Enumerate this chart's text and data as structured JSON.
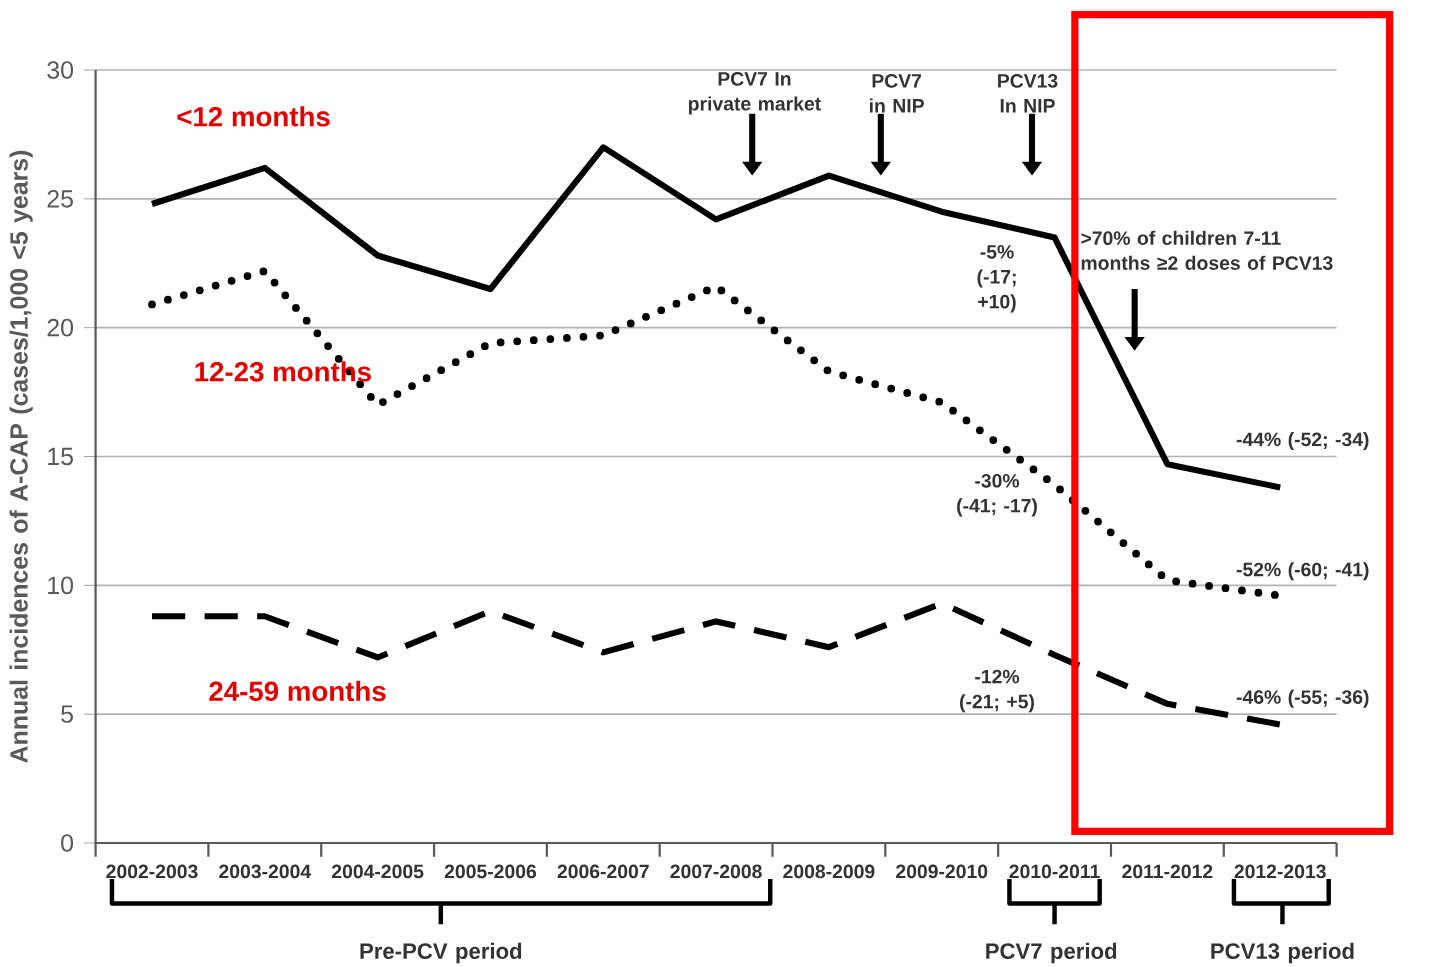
{
  "chart_data": {
    "type": "line",
    "ylabel": "Annual incidences of A-CAP (cases/1,000 <5 years)",
    "categories": [
      "2002-2003",
      "2003-2004",
      "2004-2005",
      "2005-2006",
      "2006-2007",
      "2007-2008",
      "2008-2009",
      "2009-2010",
      "2010-2011",
      "2011-2012",
      "2012-2013"
    ],
    "series": [
      {
        "name": "<12 months",
        "color": "#000000",
        "line_style": "solid",
        "values": [
          24.8,
          26.2,
          22.8,
          21.5,
          27.0,
          24.2,
          25.9,
          24.5,
          23.5,
          14.7,
          13.8
        ]
      },
      {
        "name": "12-23 months",
        "color": "#000000",
        "line_style": "dotted",
        "values": [
          20.9,
          22.2,
          17.0,
          19.4,
          19.7,
          21.6,
          18.3,
          17.1,
          13.9,
          10.2,
          9.6
        ]
      },
      {
        "name": "24-59 months",
        "color": "#000000",
        "line_style": "dashed",
        "values": [
          8.8,
          8.8,
          7.2,
          9.0,
          7.4,
          8.6,
          7.6,
          9.3,
          7.3,
          5.4,
          4.6
        ]
      }
    ],
    "ylim": [
      0,
      30
    ],
    "yticks": [
      0,
      5,
      10,
      15,
      20,
      25,
      30
    ],
    "grid": "y",
    "annotations": [
      "PCV7 In private market",
      "PCV7 in NIP",
      "PCV13 In NIP",
      ">70% of children 7-11 months ≥2 doses of PCV13",
      "-5% (-17; +10)",
      "-30% (-41; -17)",
      "-12% (-21; +5)",
      "-44% (-52; -34)",
      "-52% (-60; -41)",
      "-46% (-55; -36)",
      "Pre-PCV period",
      "PCV7 period",
      "PCV13 period"
    ]
  }
}
